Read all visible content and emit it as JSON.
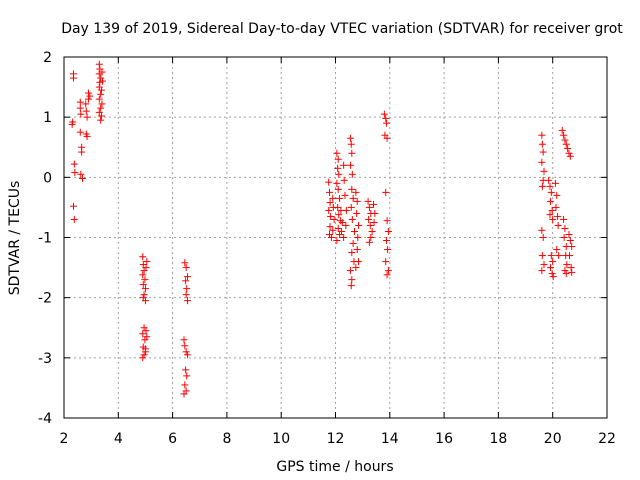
{
  "chart_data": {
    "type": "scatter",
    "title": "Day 139 of 2019, Sidereal Day-to-day VTEC variation (SDTVAR) for receiver grot",
    "xlabel": "GPS time / hours",
    "ylabel": "SDTVAR / TECUs",
    "xlim": [
      2,
      22
    ],
    "ylim": [
      -4,
      2
    ],
    "xticks": [
      2,
      4,
      6,
      8,
      10,
      12,
      14,
      16,
      18,
      20,
      22
    ],
    "yticks": [
      -4,
      -3,
      -2,
      -1,
      0,
      1,
      2
    ],
    "grid": true,
    "marker": "+",
    "color": "#ff0000",
    "series": [
      {
        "name": "SDTVAR",
        "points": [
          [
            2.35,
            1.72
          ],
          [
            2.35,
            1.65
          ],
          [
            2.3,
            0.88
          ],
          [
            2.32,
            0.92
          ],
          [
            2.38,
            0.22
          ],
          [
            2.4,
            0.08
          ],
          [
            2.35,
            -0.48
          ],
          [
            2.38,
            -0.7
          ],
          [
            2.6,
            1.25
          ],
          [
            2.6,
            1.15
          ],
          [
            2.62,
            1.05
          ],
          [
            2.6,
            0.75
          ],
          [
            2.65,
            0.5
          ],
          [
            2.65,
            0.42
          ],
          [
            2.62,
            0.05
          ],
          [
            2.68,
            -0.02
          ],
          [
            2.8,
            1.22
          ],
          [
            2.82,
            1.1
          ],
          [
            2.85,
            1.0
          ],
          [
            2.82,
            0.72
          ],
          [
            2.85,
            0.68
          ],
          [
            2.9,
            1.4
          ],
          [
            2.9,
            1.3
          ],
          [
            2.95,
            1.35
          ],
          [
            3.3,
            1.88
          ],
          [
            3.32,
            1.8
          ],
          [
            3.3,
            1.72
          ],
          [
            3.35,
            1.65
          ],
          [
            3.32,
            1.58
          ],
          [
            3.3,
            1.5
          ],
          [
            3.38,
            1.45
          ],
          [
            3.35,
            1.38
          ],
          [
            3.3,
            1.3
          ],
          [
            3.4,
            1.22
          ],
          [
            3.35,
            1.15
          ],
          [
            3.3,
            1.08
          ],
          [
            3.38,
            1.02
          ],
          [
            3.35,
            0.95
          ],
          [
            3.42,
            1.6
          ],
          [
            3.4,
            1.75
          ],
          [
            4.9,
            -1.32
          ],
          [
            4.92,
            -1.45
          ],
          [
            4.95,
            -1.55
          ],
          [
            4.9,
            -1.62
          ],
          [
            4.98,
            -1.7
          ],
          [
            4.92,
            -1.78
          ],
          [
            5.0,
            -1.85
          ],
          [
            4.95,
            -1.95
          ],
          [
            5.0,
            -2.05
          ],
          [
            4.92,
            -2.0
          ],
          [
            5.02,
            -1.5
          ],
          [
            5.05,
            -1.4
          ],
          [
            4.95,
            -2.5
          ],
          [
            4.9,
            -2.6
          ],
          [
            4.98,
            -2.7
          ],
          [
            4.92,
            -2.82
          ],
          [
            5.0,
            -2.9
          ],
          [
            4.95,
            -2.95
          ],
          [
            4.9,
            -3.0
          ],
          [
            5.02,
            -2.55
          ],
          [
            5.05,
            -2.65
          ],
          [
            5.0,
            -2.85
          ],
          [
            6.45,
            -1.42
          ],
          [
            6.5,
            -1.5
          ],
          [
            6.48,
            -1.72
          ],
          [
            6.52,
            -1.85
          ],
          [
            6.5,
            -1.95
          ],
          [
            6.55,
            -2.05
          ],
          [
            6.55,
            -1.65
          ],
          [
            6.42,
            -2.7
          ],
          [
            6.45,
            -2.8
          ],
          [
            6.5,
            -2.9
          ],
          [
            6.55,
            -2.95
          ],
          [
            6.48,
            -3.2
          ],
          [
            6.52,
            -3.3
          ],
          [
            6.45,
            -3.45
          ],
          [
            6.5,
            -3.55
          ],
          [
            6.42,
            -3.6
          ],
          [
            11.75,
            -0.08
          ],
          [
            11.78,
            -0.25
          ],
          [
            11.8,
            -0.42
          ],
          [
            11.75,
            -0.55
          ],
          [
            11.82,
            -0.65
          ],
          [
            11.8,
            -0.82
          ],
          [
            11.78,
            -0.95
          ],
          [
            11.85,
            -1.0
          ],
          [
            11.9,
            -0.35
          ],
          [
            11.92,
            -0.5
          ],
          [
            11.95,
            -0.7
          ],
          [
            11.9,
            -0.88
          ],
          [
            12.05,
            0.4
          ],
          [
            12.1,
            0.3
          ],
          [
            12.08,
            0.15
          ],
          [
            12.12,
            0.05
          ],
          [
            12.05,
            -0.1
          ],
          [
            12.1,
            -0.2
          ],
          [
            12.15,
            -0.35
          ],
          [
            12.08,
            -0.5
          ],
          [
            12.12,
            -0.62
          ],
          [
            12.18,
            -0.72
          ],
          [
            12.1,
            -0.85
          ],
          [
            12.15,
            -0.95
          ],
          [
            12.05,
            -1.05
          ],
          [
            12.2,
            -0.55
          ],
          [
            12.25,
            -0.75
          ],
          [
            12.22,
            -0.9
          ],
          [
            12.3,
            0.2
          ],
          [
            12.32,
            -0.05
          ],
          [
            12.35,
            -0.3
          ],
          [
            12.4,
            -0.55
          ],
          [
            12.38,
            -0.8
          ],
          [
            12.3,
            -1.0
          ],
          [
            12.55,
            0.65
          ],
          [
            12.58,
            0.55
          ],
          [
            12.6,
            0.4
          ],
          [
            12.55,
            0.2
          ],
          [
            12.62,
            0.05
          ],
          [
            12.6,
            -0.2
          ],
          [
            12.65,
            -0.35
          ],
          [
            12.58,
            -0.5
          ],
          [
            12.62,
            -0.7
          ],
          [
            12.7,
            -0.9
          ],
          [
            12.65,
            -1.1
          ],
          [
            12.6,
            -1.25
          ],
          [
            12.68,
            -1.4
          ],
          [
            12.55,
            -1.55
          ],
          [
            12.6,
            -1.7
          ],
          [
            12.58,
            -1.8
          ],
          [
            12.75,
            -0.25
          ],
          [
            12.8,
            -0.4
          ],
          [
            12.78,
            -0.6
          ],
          [
            12.85,
            -0.8
          ],
          [
            12.82,
            -1.0
          ],
          [
            12.8,
            -1.2
          ],
          [
            12.85,
            -1.4
          ],
          [
            12.75,
            -1.5
          ],
          [
            13.2,
            -0.4
          ],
          [
            13.25,
            -0.5
          ],
          [
            13.3,
            -0.6
          ],
          [
            13.22,
            -0.7
          ],
          [
            13.28,
            -0.8
          ],
          [
            13.35,
            -0.9
          ],
          [
            13.3,
            -1.0
          ],
          [
            13.25,
            -1.08
          ],
          [
            13.4,
            -0.45
          ],
          [
            13.45,
            -0.6
          ],
          [
            13.42,
            -0.75
          ],
          [
            13.8,
            1.05
          ],
          [
            13.85,
            0.98
          ],
          [
            13.88,
            0.9
          ],
          [
            13.82,
            0.7
          ],
          [
            13.9,
            0.65
          ],
          [
            13.85,
            -0.25
          ],
          [
            13.9,
            -0.72
          ],
          [
            13.95,
            -0.9
          ],
          [
            13.88,
            -1.05
          ],
          [
            13.92,
            -1.2
          ],
          [
            13.85,
            -1.4
          ],
          [
            13.95,
            -1.55
          ],
          [
            13.9,
            -1.62
          ],
          [
            19.6,
            0.7
          ],
          [
            19.62,
            0.55
          ],
          [
            19.65,
            0.42
          ],
          [
            19.6,
            0.25
          ],
          [
            19.68,
            0.1
          ],
          [
            19.65,
            -0.05
          ],
          [
            19.62,
            -0.15
          ],
          [
            19.6,
            -0.88
          ],
          [
            19.65,
            -1.0
          ],
          [
            19.62,
            -1.3
          ],
          [
            19.68,
            -1.45
          ],
          [
            19.6,
            -1.55
          ],
          [
            19.85,
            -0.05
          ],
          [
            19.9,
            -0.15
          ],
          [
            19.95,
            -0.25
          ],
          [
            19.92,
            -0.4
          ],
          [
            19.98,
            -0.55
          ],
          [
            19.9,
            -0.62
          ],
          [
            20.0,
            -0.7
          ],
          [
            19.95,
            -1.3
          ],
          [
            20.0,
            -1.4
          ],
          [
            19.92,
            -1.5
          ],
          [
            19.98,
            -1.6
          ],
          [
            20.02,
            -1.65
          ],
          [
            20.1,
            -0.1
          ],
          [
            20.15,
            -0.3
          ],
          [
            20.12,
            -0.5
          ],
          [
            20.18,
            -0.65
          ],
          [
            20.2,
            -0.8
          ],
          [
            20.15,
            -1.2
          ],
          [
            20.22,
            -1.3
          ],
          [
            20.4,
            -0.7
          ],
          [
            20.45,
            -0.85
          ],
          [
            20.42,
            -1.0
          ],
          [
            20.5,
            -1.15
          ],
          [
            20.48,
            -1.3
          ],
          [
            20.52,
            -1.45
          ],
          [
            20.45,
            -1.55
          ],
          [
            20.5,
            -1.6
          ],
          [
            20.35,
            0.78
          ],
          [
            20.4,
            0.7
          ],
          [
            20.45,
            0.62
          ],
          [
            20.5,
            0.55
          ],
          [
            20.55,
            0.48
          ],
          [
            20.6,
            0.4
          ],
          [
            20.65,
            0.35
          ],
          [
            20.6,
            -0.95
          ],
          [
            20.65,
            -1.05
          ],
          [
            20.7,
            -1.15
          ],
          [
            20.62,
            -1.3
          ],
          [
            20.68,
            -1.5
          ],
          [
            20.7,
            -1.58
          ]
        ]
      }
    ]
  }
}
